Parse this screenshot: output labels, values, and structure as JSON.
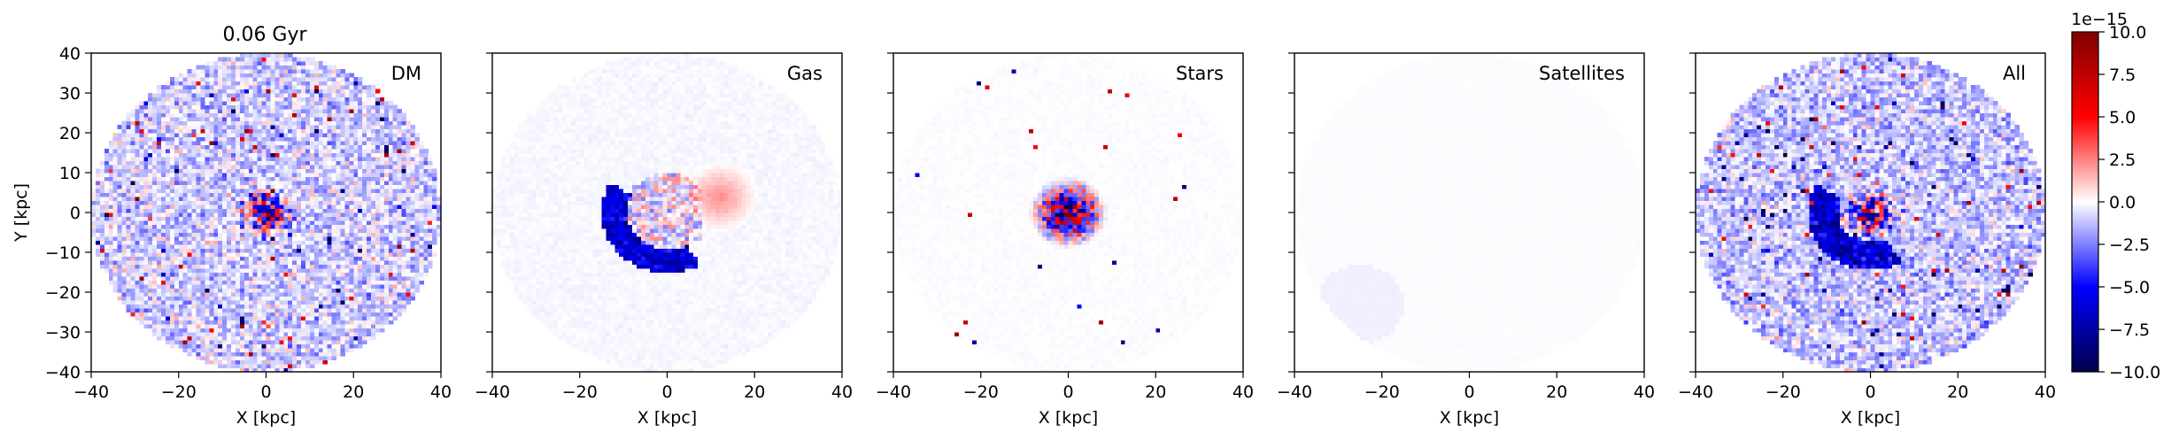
{
  "figure": {
    "time_label": "0.06 Gyr"
  },
  "colors": {
    "axis": "#000000",
    "colormap": "seismic",
    "cmap_stops": [
      "#00004c",
      "#0000ff",
      "#ffffff",
      "#ff0000",
      "#7f0000"
    ]
  },
  "chart_data": [
    {
      "type": "heatmap",
      "panel_label": "DM",
      "title": "0.06 Gyr",
      "xlabel": "X [kpc]",
      "ylabel": "Y [kpc]",
      "xlim": [
        -40,
        40
      ],
      "ylim": [
        -40,
        40
      ],
      "xticks": [
        -40,
        -20,
        0,
        20,
        40
      ],
      "yticks": [
        -40,
        -30,
        -20,
        -10,
        0,
        10,
        20,
        30,
        40
      ],
      "map_radius_kpc": 40,
      "pattern": {
        "background": -0.9,
        "noise": 1.8,
        "core": {
          "x": 0,
          "y": 0,
          "radius": 8,
          "amplitude": 6
        },
        "outliers": 0.02
      }
    },
    {
      "type": "heatmap",
      "panel_label": "Gas",
      "xlabel": "X [kpc]",
      "xlim": [
        -40,
        40
      ],
      "ylim": [
        -40,
        40
      ],
      "xticks": [
        -40,
        -20,
        0,
        20,
        40
      ],
      "map_radius_kpc": 40,
      "pattern": {
        "background": -0.15,
        "noise": 0.15,
        "arc": {
          "x": 0,
          "y": 0,
          "radius": 12,
          "width": 3,
          "from_deg": 150,
          "to_deg": 300,
          "amplitude": -7
        },
        "positive_lobe": {
          "x": 12,
          "y": 4,
          "radius": 9,
          "amplitude": 2.5
        },
        "inner_streaks": 2.5
      }
    },
    {
      "type": "heatmap",
      "panel_label": "Stars",
      "xlabel": "X [kpc]",
      "xlim": [
        -40,
        40
      ],
      "ylim": [
        -40,
        40
      ],
      "xticks": [
        -40,
        -20,
        0,
        20,
        40
      ],
      "map_radius_kpc": 40,
      "pattern": {
        "background": -0.05,
        "noise": 0.1,
        "core": {
          "x": 0,
          "y": 0,
          "radius": 9,
          "amplitude": 8
        },
        "outliers": 0.004
      }
    },
    {
      "type": "heatmap",
      "panel_label": "Satellites",
      "xlabel": "X [kpc]",
      "xlim": [
        -40,
        40
      ],
      "ylim": [
        -40,
        40
      ],
      "xticks": [
        -40,
        -20,
        0,
        20,
        40
      ],
      "map_radius_kpc": 40,
      "pattern": {
        "background": -0.06,
        "noise": 0.02,
        "blob": {
          "x": -25,
          "y": -23,
          "radius": 10,
          "amplitude": -0.25
        }
      }
    },
    {
      "type": "heatmap",
      "panel_label": "All",
      "xlabel": "X [kpc]",
      "xlim": [
        -40,
        40
      ],
      "ylim": [
        -40,
        40
      ],
      "xticks": [
        -40,
        -20,
        0,
        20,
        40
      ],
      "map_radius_kpc": 40,
      "pattern": {
        "background": -1.1,
        "noise": 1.8,
        "core": {
          "x": 0,
          "y": 0,
          "radius": 8,
          "amplitude": 6
        },
        "arc": {
          "x": 0,
          "y": 0,
          "radius": 11,
          "width": 3.5,
          "from_deg": 150,
          "to_deg": 300,
          "amplitude": -6
        },
        "outliers": 0.02
      }
    }
  ],
  "colorbar": {
    "vmin": -10.0,
    "vmax": 10.0,
    "ticks": [
      "-10.0",
      "-7.5",
      "-5.0",
      "-2.5",
      "0.0",
      "2.5",
      "5.0",
      "7.5",
      "10.0"
    ],
    "tick_values": [
      -10,
      -7.5,
      -5,
      -2.5,
      0,
      2.5,
      5,
      7.5,
      10
    ],
    "offset_text": "1e−15"
  }
}
